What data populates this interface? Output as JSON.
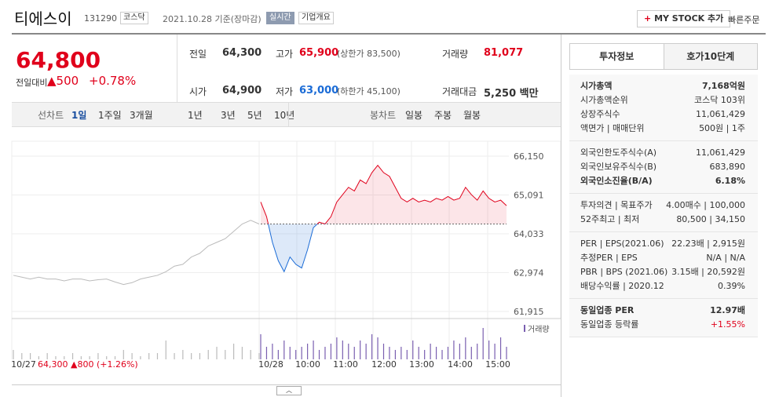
{
  "header": {
    "name": "티에스이",
    "code": "131290",
    "market": "코스닥",
    "date": "2021.10.28 기준(장마감)",
    "realtime": "실시간",
    "menu": "기업개요",
    "mystock": "MY STOCK 추가",
    "quick_order": "빠른주문"
  },
  "price": {
    "current": "64,800",
    "change_label": "전일대비",
    "change": "500",
    "rate": "+0.78%"
  },
  "summary": [
    {
      "label": "전일",
      "value": "64,300"
    },
    {
      "label": "고가",
      "value": "65,900",
      "note": "(상한가 83,500)"
    },
    {
      "label": "거래량",
      "value": "81,077"
    },
    {
      "label": "시가",
      "value": "64,900"
    },
    {
      "label": "저가",
      "value": "63,000",
      "note": "(하한가 45,100)"
    },
    {
      "label": "거래대금",
      "value": "5,250 백만"
    }
  ],
  "tabs": {
    "line_chart": "선차트",
    "periods": [
      "1일",
      "1주일",
      "3개월",
      "1년",
      "3년",
      "5년",
      "10년"
    ],
    "candle_chart": "봉차트",
    "candles": [
      "일봉",
      "주봉",
      "월봉"
    ]
  },
  "chart_data": {
    "type": "line",
    "ylim": [
      61915,
      66150
    ],
    "yticks": [
      {
        "value": 66150,
        "label": "66,150"
      },
      {
        "value": 65091,
        "label": "65,091"
      },
      {
        "value": 64033,
        "label": "64,033"
      },
      {
        "value": 62974,
        "label": "62,974"
      },
      {
        "value": 61915,
        "label": "61,915"
      }
    ],
    "baseline": 64300,
    "volume_label": "거래량",
    "x_labels": [
      "10/27",
      "10/28",
      "10:00",
      "11:00",
      "12:00",
      "13:00",
      "14:00",
      "15:00"
    ],
    "footer": {
      "date": "10/27",
      "close": "64,300",
      "change": "800",
      "rate": "(+1.26%)"
    },
    "series": [
      {
        "name": "10/27",
        "color": "#bbbbbb",
        "values": [
          62900,
          62850,
          62800,
          62850,
          62800,
          62800,
          62750,
          62800,
          62800,
          62750,
          62780,
          62800,
          62720,
          62650,
          62700,
          62800,
          62850,
          62900,
          63000,
          63150,
          63200,
          63400,
          63500,
          63700,
          63800,
          63900,
          64100,
          64300,
          64400,
          64300
        ],
        "volumes": [
          3,
          2,
          2,
          1,
          2,
          1,
          1,
          2,
          1,
          1,
          2,
          1,
          1,
          3,
          2,
          1,
          2,
          2,
          6,
          2,
          3,
          2,
          2,
          3,
          4,
          3,
          5,
          4,
          3,
          2
        ]
      },
      {
        "name": "10/28",
        "color": "#e0001b",
        "color_down": "#1a6bd6",
        "values": [
          64900,
          64500,
          63800,
          63300,
          63000,
          63400,
          63200,
          63100,
          63600,
          64200,
          64350,
          64300,
          64500,
          64900,
          65100,
          65300,
          65200,
          65500,
          65400,
          65700,
          65900,
          65700,
          65600,
          65300,
          65000,
          64900,
          65000,
          64900,
          64950,
          64900,
          65000,
          64950,
          65050,
          64950,
          65000,
          65300,
          65100,
          64950,
          65200,
          65000,
          64900,
          64950,
          64800
        ],
        "volumes": [
          8,
          4,
          5,
          3,
          6,
          4,
          3,
          4,
          5,
          6,
          3,
          4,
          5,
          7,
          6,
          5,
          4,
          6,
          5,
          8,
          7,
          5,
          4,
          3,
          4,
          3,
          6,
          4,
          3,
          5,
          4,
          3,
          4,
          6,
          5,
          7,
          4,
          5,
          10,
          6,
          5,
          7,
          4
        ]
      }
    ]
  },
  "info": {
    "tabs": [
      "투자정보",
      "호가10단계"
    ],
    "groups": [
      [
        {
          "label": "시가총액",
          "value": "7,168억원",
          "bold": true
        },
        {
          "label": "시가총액순위",
          "value": "코스닥 103위"
        },
        {
          "label": "상장주식수",
          "value": "11,061,429"
        },
        {
          "label": "액면가 | 매매단위",
          "value": "500원 | 1주"
        }
      ],
      [
        {
          "label": "외국인한도주식수(A)",
          "value": "11,061,429"
        },
        {
          "label": "외국인보유주식수(B)",
          "value": "683,890"
        },
        {
          "label": "외국인소진율(B/A)",
          "value": "6.18%",
          "bold": true
        }
      ],
      [
        {
          "label": "투자의견 | 목표주가",
          "value": "4.00매수 | 100,000"
        },
        {
          "label": "52주최고 | 최저",
          "value": "80,500 | 34,150"
        }
      ],
      [
        {
          "label": "PER | EPS(2021.06)",
          "value": "22.23배 | 2,915원"
        },
        {
          "label": "추정PER | EPS",
          "value": "N/A | N/A"
        },
        {
          "label": "PBR | BPS (2021.06)",
          "value": "3.15배 | 20,592원"
        },
        {
          "label": "배당수익률 | 2020.12",
          "value": "0.39%"
        }
      ],
      [
        {
          "label": "동일업종 PER",
          "value": "12.97배",
          "bold": true
        },
        {
          "label": "동일업종 등락률",
          "value": "+1.55%",
          "up": true
        }
      ]
    ]
  }
}
